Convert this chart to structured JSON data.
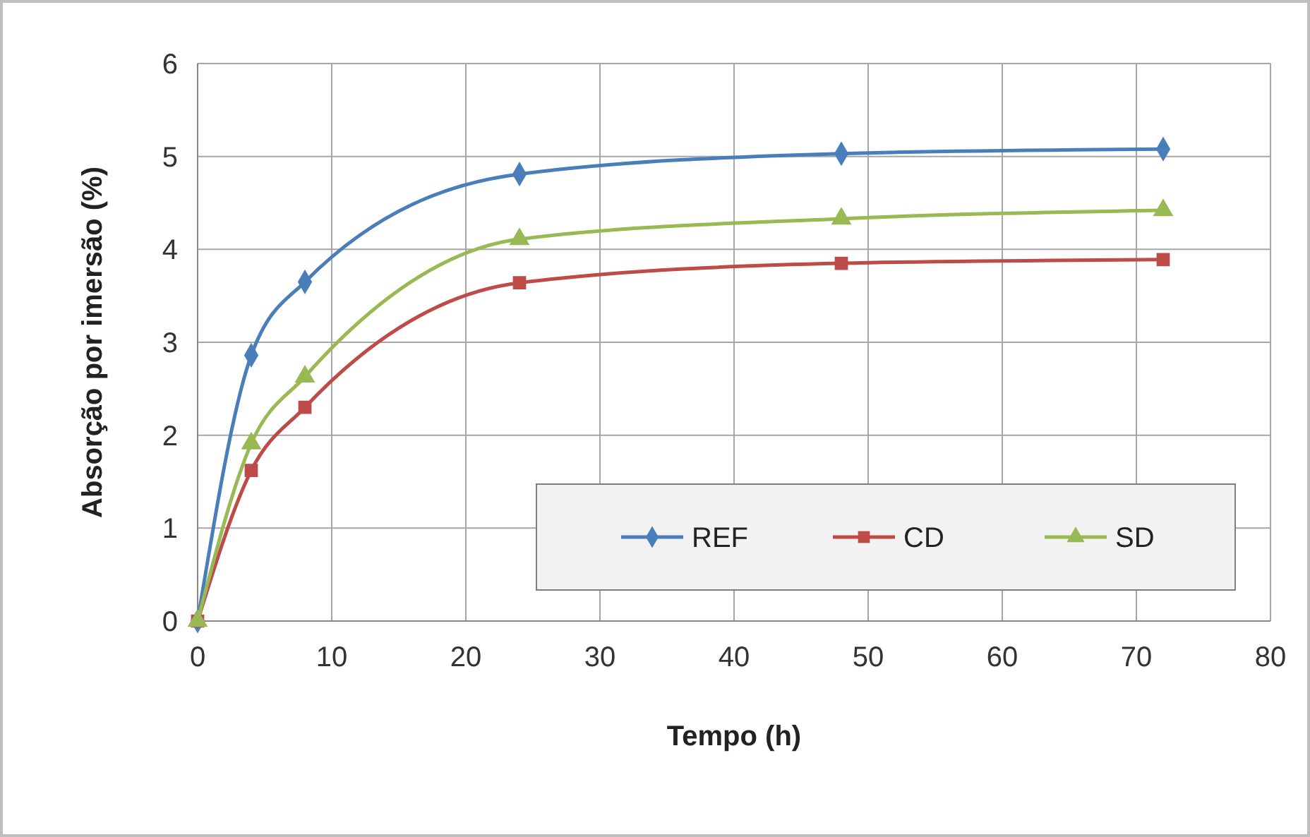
{
  "chart_data": {
    "type": "line",
    "xlabel": "Tempo (h)",
    "ylabel": "Absorção por imersão (%)",
    "x": [
      0,
      4,
      8,
      24,
      48,
      72
    ],
    "series": [
      {
        "name": "REF",
        "color": "#4a7ebb",
        "marker": "diamond",
        "values": [
          0,
          2.86,
          3.65,
          4.81,
          5.03,
          5.08
        ]
      },
      {
        "name": "CD",
        "color": "#be4b48",
        "marker": "square",
        "values": [
          0,
          1.62,
          2.3,
          3.64,
          3.85,
          3.89
        ]
      },
      {
        "name": "SD",
        "color": "#98b954",
        "marker": "triangle",
        "values": [
          0,
          1.91,
          2.63,
          4.11,
          4.33,
          4.42
        ]
      }
    ],
    "xlim": [
      0,
      80
    ],
    "xticks": [
      0,
      10,
      20,
      30,
      40,
      50,
      60,
      70,
      80
    ],
    "ylim": [
      0,
      6
    ],
    "yticks": [
      0,
      1,
      2,
      3,
      4,
      5,
      6
    ],
    "grid": true,
    "legend": "bottom right"
  }
}
